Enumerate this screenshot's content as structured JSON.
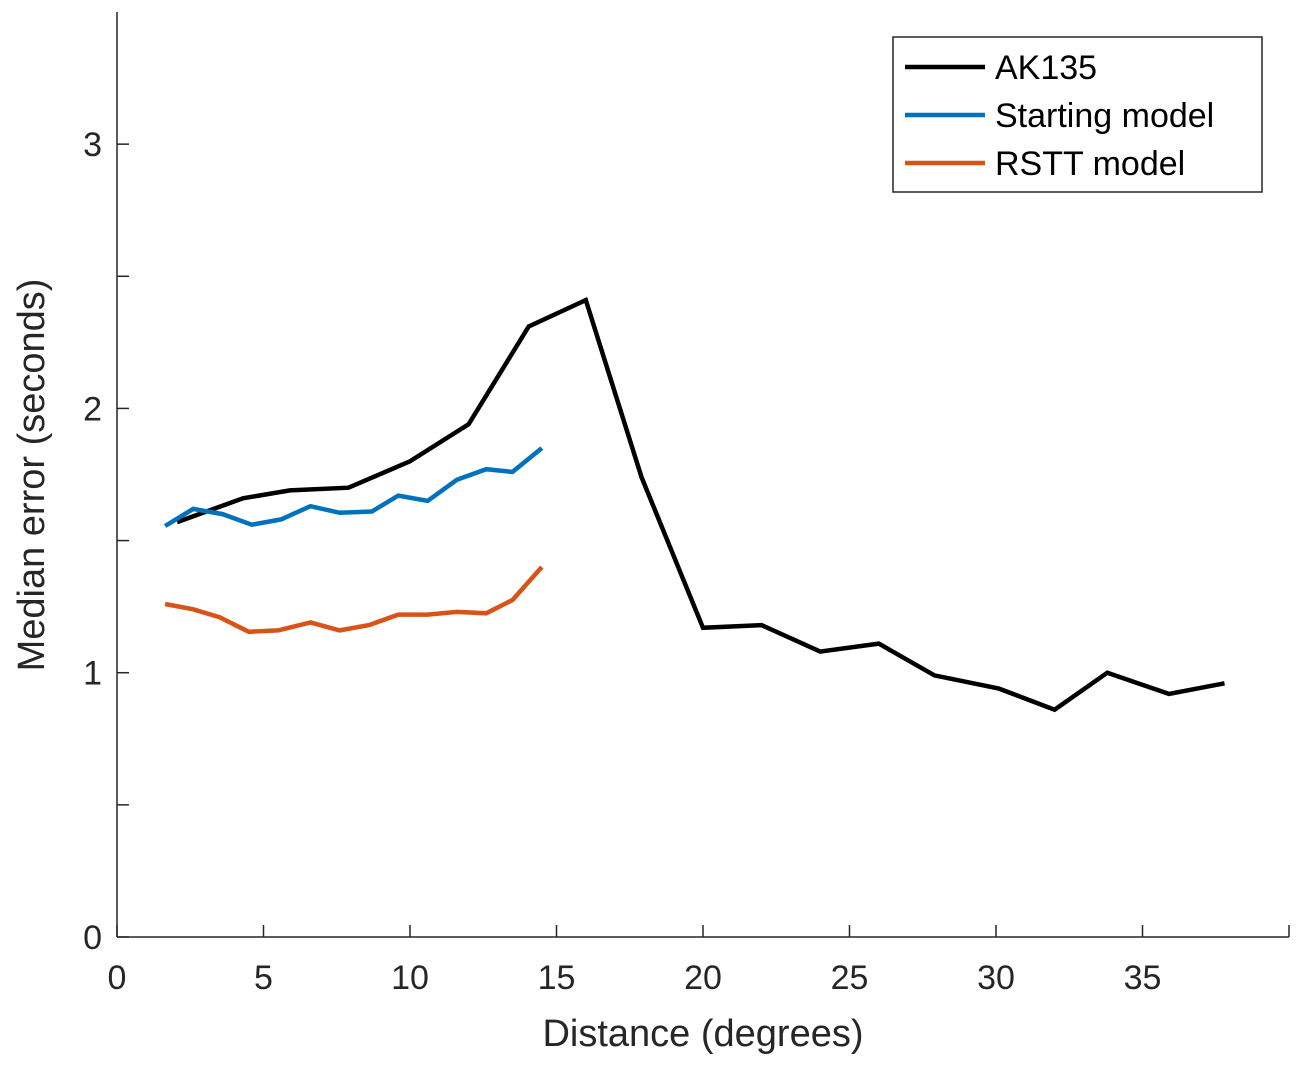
{
  "chart_data": {
    "type": "line",
    "title": "",
    "xlabel": "Distance (degrees)",
    "ylabel": "Median error (seconds)",
    "xlim": [
      0,
      40
    ],
    "ylim": [
      0,
      3.5
    ],
    "xticks": [
      0,
      5,
      10,
      15,
      20,
      25,
      30,
      35
    ],
    "xtick_labels": [
      "0",
      "5",
      "10",
      "15",
      "20",
      "25",
      "30",
      "35"
    ],
    "yticks": [
      0,
      0.5,
      1,
      1.5,
      2,
      2.5,
      3
    ],
    "ytick_labels": [
      "0",
      "",
      "1",
      "",
      "2",
      "",
      "3"
    ],
    "grid": false,
    "legend_position": "top-right",
    "series": [
      {
        "name": "AK135",
        "color": "#000000",
        "x": [
          2.05,
          4.3,
          5.9,
          7.9,
          10.0,
          12.0,
          14.05,
          16.0,
          17.9,
          20.0,
          22.0,
          24.0,
          26.0,
          27.9,
          30.1,
          32.0,
          33.8,
          35.9,
          37.8
        ],
        "y": [
          1.57,
          1.66,
          1.69,
          1.7,
          1.8,
          1.94,
          2.31,
          2.41,
          1.74,
          1.17,
          1.18,
          1.08,
          1.11,
          0.99,
          0.94,
          0.86,
          1.0,
          0.92,
          0.96
        ]
      },
      {
        "name": "Starting model",
        "color": "#0072BD",
        "x": [
          1.64,
          2.6,
          3.6,
          4.6,
          5.6,
          6.6,
          7.6,
          8.7,
          9.6,
          10.6,
          11.6,
          12.6,
          13.5,
          14.5
        ],
        "y": [
          1.555,
          1.62,
          1.6,
          1.56,
          1.58,
          1.63,
          1.605,
          1.61,
          1.67,
          1.65,
          1.73,
          1.77,
          1.76,
          1.85
        ]
      },
      {
        "name": "RSTT model",
        "color": "#D95319",
        "x": [
          1.64,
          2.6,
          3.5,
          4.5,
          5.5,
          6.6,
          7.6,
          8.6,
          9.6,
          10.6,
          11.6,
          12.6,
          13.5,
          14.5
        ],
        "y": [
          1.26,
          1.24,
          1.21,
          1.155,
          1.16,
          1.19,
          1.16,
          1.18,
          1.22,
          1.22,
          1.23,
          1.225,
          1.275,
          1.4
        ]
      }
    ]
  }
}
